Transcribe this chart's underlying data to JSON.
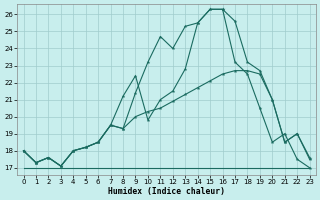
{
  "xlabel": "Humidex (Indice chaleur)",
  "bg_color": "#c8eeed",
  "grid_color": "#a0cccc",
  "line_color": "#1a6b60",
  "xlim": [
    -0.5,
    23.5
  ],
  "ylim": [
    16.6,
    26.6
  ],
  "yticks": [
    17,
    18,
    19,
    20,
    21,
    22,
    23,
    24,
    25,
    26
  ],
  "xticks": [
    0,
    1,
    2,
    3,
    4,
    5,
    6,
    7,
    8,
    9,
    10,
    11,
    12,
    13,
    14,
    15,
    16,
    17,
    18,
    19,
    20,
    21,
    22,
    23
  ],
  "line1_x": [
    0,
    1,
    2,
    3,
    4,
    5,
    6,
    7,
    8,
    9,
    10,
    11,
    12,
    13,
    14,
    15,
    16,
    17,
    18,
    19,
    20,
    21,
    22,
    23
  ],
  "line1_y": [
    18.0,
    17.3,
    17.6,
    17.1,
    18.0,
    18.2,
    18.5,
    19.5,
    19.3,
    21.4,
    23.2,
    24.7,
    24.0,
    25.3,
    25.5,
    26.3,
    26.3,
    25.6,
    23.2,
    22.7,
    21.0,
    18.5,
    19.0,
    17.6
  ],
  "line2_x": [
    0,
    1,
    2,
    3,
    4,
    5,
    6,
    7,
    8,
    9,
    10,
    11,
    12,
    13,
    14,
    15,
    16,
    17,
    18,
    19,
    20,
    21,
    22,
    23
  ],
  "line2_y": [
    18.0,
    17.3,
    17.6,
    17.1,
    18.0,
    18.2,
    18.5,
    19.5,
    21.2,
    22.4,
    19.8,
    21.0,
    21.5,
    22.8,
    25.5,
    26.3,
    26.3,
    23.2,
    22.5,
    20.5,
    18.5,
    19.0,
    17.5,
    17.0
  ],
  "line3_x": [
    0,
    1,
    2,
    3,
    4,
    5,
    6,
    7,
    8,
    9,
    10,
    11,
    12,
    13,
    14,
    15,
    16,
    17,
    18,
    19,
    20,
    21,
    22,
    23
  ],
  "line3_y": [
    18.0,
    17.3,
    17.6,
    17.1,
    18.0,
    18.2,
    18.5,
    19.5,
    19.3,
    20.0,
    20.3,
    20.5,
    20.9,
    21.3,
    21.7,
    22.1,
    22.5,
    22.7,
    22.7,
    22.5,
    21.0,
    18.5,
    19.0,
    17.5
  ],
  "line4_x": [
    0,
    3,
    9,
    16,
    23
  ],
  "line4_y": [
    17.0,
    17.0,
    17.0,
    17.0,
    17.0
  ]
}
